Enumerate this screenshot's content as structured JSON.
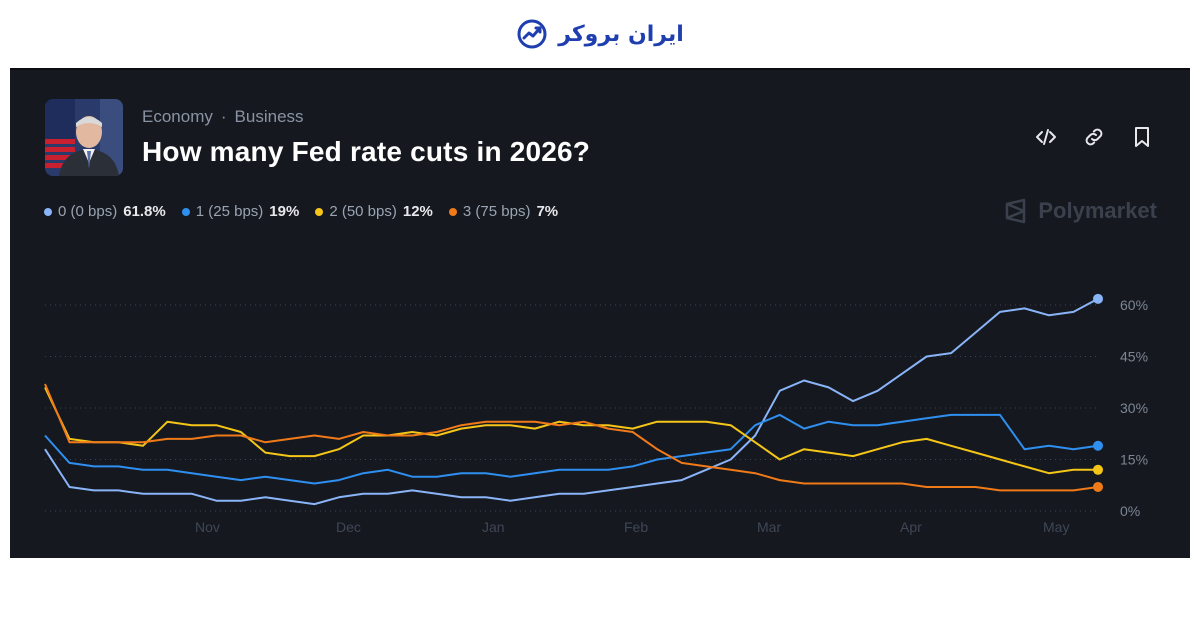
{
  "brand": {
    "name": "ایران بروکر",
    "icon": "chart-growth-icon",
    "color": "#1f3fb0"
  },
  "header": {
    "breadcrumb": [
      "Economy",
      "Business"
    ],
    "breadcrumb_separator": "·",
    "title": "How many Fed rate cuts in 2026?",
    "avatar": "powell-portrait-image"
  },
  "actions": [
    {
      "name": "embed-code-icon"
    },
    {
      "name": "link-icon"
    },
    {
      "name": "bookmark-icon"
    }
  ],
  "watermark": {
    "label": "Polymarket",
    "icon": "polymarket-logo-icon"
  },
  "legend": [
    {
      "label": "0 (0 bps)",
      "value": "61.8%",
      "color": "#8ab4f8"
    },
    {
      "label": "1 (25 bps)",
      "value": "19%",
      "color": "#2f8ff0"
    },
    {
      "label": "2 (50 bps)",
      "value": "12%",
      "color": "#f5c518"
    },
    {
      "label": "3 (75 bps)",
      "value": "7%",
      "color": "#f07a1a"
    }
  ],
  "chart_data": {
    "type": "line",
    "x_ticks": [
      "Nov",
      "Dec",
      "Jan",
      "Feb",
      "Mar",
      "Apr",
      "May"
    ],
    "y_ticks": [
      "0%",
      "15%",
      "30%",
      "45%",
      "60%"
    ],
    "ylim": [
      0,
      60
    ],
    "grid": "horizontal-dotted",
    "series": [
      {
        "name": "0 (0 bps)",
        "color": "#8ab4f8",
        "values": [
          18,
          7,
          6,
          6,
          5,
          5,
          5,
          3,
          3,
          4,
          3,
          2,
          4,
          5,
          5,
          6,
          5,
          4,
          4,
          3,
          4,
          5,
          5,
          6,
          7,
          8,
          9,
          12,
          15,
          22,
          35,
          38,
          36,
          32,
          35,
          40,
          45,
          46,
          52,
          58,
          59,
          57,
          58,
          61.8
        ]
      },
      {
        "name": "1 (25 bps)",
        "color": "#2f8ff0",
        "values": [
          22,
          14,
          13,
          13,
          12,
          12,
          11,
          10,
          9,
          10,
          9,
          8,
          9,
          11,
          12,
          10,
          10,
          11,
          11,
          10,
          11,
          12,
          12,
          12,
          13,
          15,
          16,
          17,
          18,
          25,
          28,
          24,
          26,
          25,
          25,
          26,
          27,
          28,
          28,
          28,
          18,
          19,
          18,
          19
        ]
      },
      {
        "name": "2 (50 bps)",
        "color": "#f5c518",
        "values": [
          36,
          21,
          20,
          20,
          19,
          26,
          25,
          25,
          23,
          17,
          16,
          16,
          18,
          22,
          22,
          23,
          22,
          24,
          25,
          25,
          24,
          26,
          25,
          25,
          24,
          26,
          26,
          26,
          25,
          20,
          15,
          18,
          17,
          16,
          18,
          20,
          21,
          19,
          17,
          15,
          13,
          11,
          12,
          12
        ]
      },
      {
        "name": "3 (75 bps)",
        "color": "#f07a1a",
        "values": [
          37,
          20,
          20,
          20,
          20,
          21,
          21,
          22,
          22,
          20,
          21,
          22,
          21,
          23,
          22,
          22,
          23,
          25,
          26,
          26,
          26,
          25,
          26,
          24,
          23,
          18,
          14,
          13,
          12,
          11,
          9,
          8,
          8,
          8,
          8,
          8,
          7,
          7,
          7,
          6,
          6,
          6,
          6,
          7
        ]
      }
    ]
  }
}
